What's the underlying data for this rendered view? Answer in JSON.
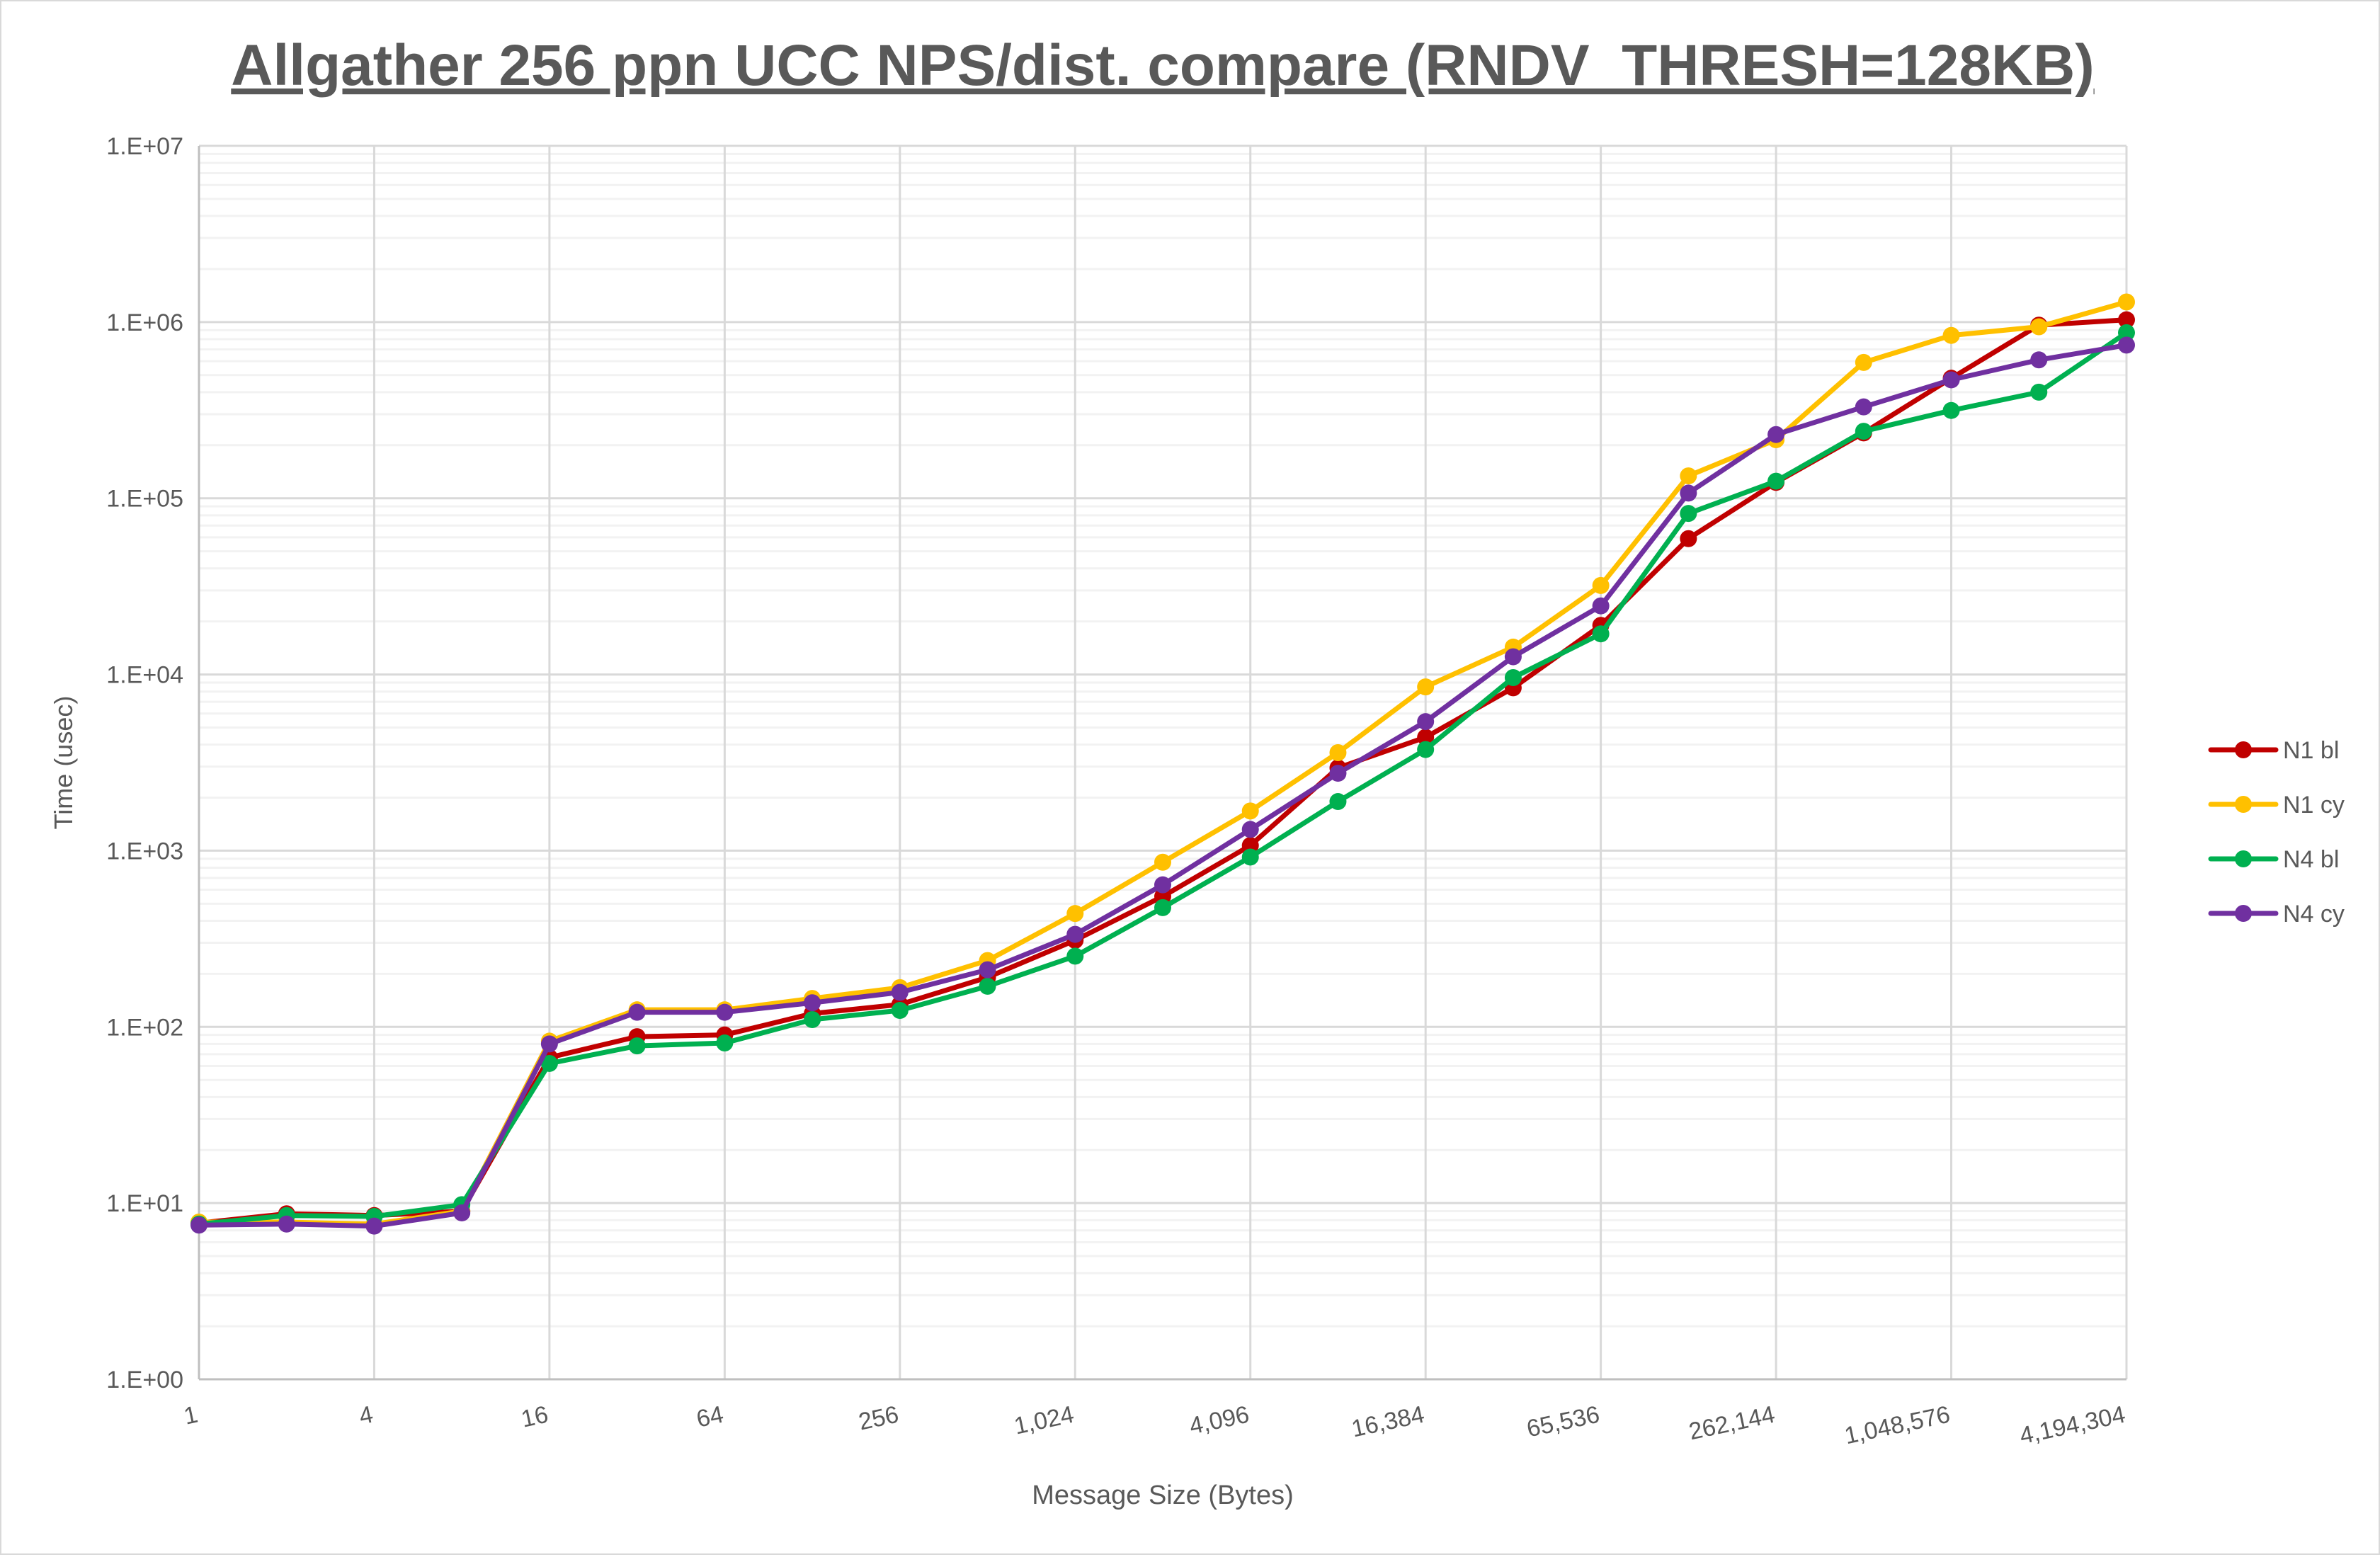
{
  "chart_data": {
    "type": "line",
    "title": "Allgather 256 ppn UCC NPS/dist. compare (RNDV_THRESH=128KB)",
    "xlabel": "Message Size (Bytes)",
    "ylabel": "Time (usec)",
    "x_scale": "log2",
    "y_scale": "log10",
    "xlim": [
      1,
      4194304
    ],
    "ylim": [
      1,
      10000000
    ],
    "grid": true,
    "legend_position": "right",
    "x_tick_labels": [
      "1",
      "4",
      "16",
      "64",
      "256",
      "1,024",
      "4,096",
      "16,384",
      "65,536",
      "262,144",
      "1,048,576",
      "4,194,304"
    ],
    "y_tick_labels": [
      "1.E+00",
      "1.E+01",
      "1.E+02",
      "1.E+03",
      "1.E+04",
      "1.E+05",
      "1.E+06",
      "1.E+07"
    ],
    "x": [
      1,
      2,
      4,
      8,
      16,
      32,
      64,
      128,
      256,
      512,
      1024,
      2048,
      4096,
      8192,
      16384,
      32768,
      65536,
      131072,
      262144,
      524288,
      1048576,
      2097152,
      4194304
    ],
    "series": [
      {
        "name": "N1 bl",
        "color": "#C00000",
        "values": [
          7.7,
          8.7,
          8.5,
          9.0,
          67,
          88,
          90,
          119,
          134,
          191,
          310,
          550,
          1070,
          2950,
          4400,
          8400,
          19000,
          59000,
          123000,
          235000,
          480000,
          960000,
          1030000
        ]
      },
      {
        "name": "N1 cy",
        "color": "#FFC000",
        "values": [
          7.8,
          7.8,
          7.6,
          9.0,
          83,
          125,
          125,
          145,
          167,
          238,
          440,
          860,
          1680,
          3600,
          8500,
          14300,
          32000,
          134000,
          215000,
          590000,
          840000,
          940000,
          1300000
        ]
      },
      {
        "name": "N4 bl",
        "color": "#00B050",
        "values": [
          7.6,
          8.5,
          8.4,
          9.8,
          62,
          78,
          81,
          110,
          124,
          170,
          252,
          475,
          920,
          1900,
          3750,
          9600,
          17000,
          82000,
          125000,
          240000,
          315000,
          400000,
          870000
        ]
      },
      {
        "name": "N4 cy",
        "color": "#7030A0",
        "values": [
          7.5,
          7.6,
          7.4,
          8.8,
          80,
          121,
          121,
          137,
          157,
          211,
          335,
          640,
          1320,
          2750,
          5400,
          12600,
          24500,
          107000,
          230000,
          330000,
          470000,
          610000,
          740000
        ]
      }
    ]
  }
}
